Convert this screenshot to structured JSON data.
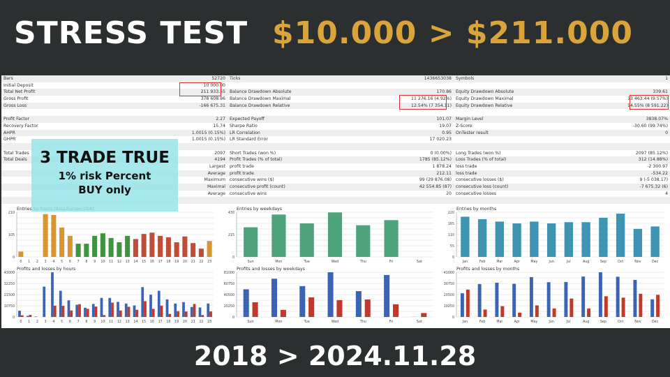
{
  "header": {
    "title": "STRESS TEST",
    "money": "$10.000 > $211.000",
    "dates": "2018 > 2024.11.28"
  },
  "overlay": {
    "line1": "3 TRADE TRUE",
    "line2": "1% risk Percent",
    "line3": "BUY only",
    "color": "#96e4e8"
  },
  "table": [
    [
      [
        "Bars",
        "52720"
      ],
      [
        "Ticks",
        "1436653038"
      ],
      [
        "Symbols",
        "1"
      ]
    ],
    [
      [
        "Initial Deposit",
        "10 000.00"
      ],
      [
        "",
        ""
      ],
      [
        "",
        ""
      ]
    ],
    [
      [
        "Total Net Profit",
        "211 933.55"
      ],
      [
        "Balance Drawdown Absolute",
        "170.86"
      ],
      [
        "Equity Drawdown Absolute",
        "339.61"
      ]
    ],
    [
      [
        "Gross Profit",
        "378 608.86"
      ],
      [
        "Balance Drawdown Maximal",
        "11 276.16 (4.92%)"
      ],
      [
        "Equity Drawdown Maximal",
        "13 463.44 (9.57%)"
      ]
    ],
    [
      [
        "Gross Loss",
        "-166 675.31"
      ],
      [
        "Balance Drawdown Relative",
        "12.54% (7 354.11)"
      ],
      [
        "Equity Drawdown Relative",
        "14.55% (8 591.22)"
      ]
    ],
    [
      [
        "",
        ""
      ],
      [
        "",
        ""
      ],
      [
        "",
        ""
      ]
    ],
    [
      [
        "Profit Factor",
        "2.27"
      ],
      [
        "Expected Payoff",
        "101.07"
      ],
      [
        "Margin Level",
        "3838.07%"
      ]
    ],
    [
      [
        "Recovery Factor",
        "15.74"
      ],
      [
        "Sharpe Ratio",
        "19.07"
      ],
      [
        "Z-Score",
        "-30.60 (99.74%)"
      ]
    ],
    [
      [
        "AHPR",
        "1.0015 (0.15%)"
      ],
      [
        "LR Correlation",
        "0.95"
      ],
      [
        "OnTester result",
        "0"
      ]
    ],
    [
      [
        "GHPR",
        "1.0015 (0.15%)"
      ],
      [
        "LR Standard Error",
        "17 020.23"
      ],
      [
        "",
        ""
      ]
    ],
    [
      [
        "",
        ""
      ],
      [
        "",
        ""
      ],
      [
        "",
        ""
      ]
    ],
    [
      [
        "Total Trades",
        "2097"
      ],
      [
        "Short Trades (won %)",
        "0 (0.00%)"
      ],
      [
        "Long Trades (won %)",
        "2097 (85.12%)"
      ]
    ],
    [
      [
        "Total Deals",
        "4194"
      ],
      [
        "Profit Trades (% of total)",
        "1785 (85.12%)"
      ],
      [
        "Loss Trades (% of total)",
        "312 (14.88%)"
      ]
    ],
    [
      [
        "",
        "Largest"
      ],
      [
        "profit trade",
        "1 878.24"
      ],
      [
        "loss trade",
        "-2 300.97"
      ]
    ],
    [
      [
        "",
        "Average"
      ],
      [
        "profit trade",
        "212.11"
      ],
      [
        "loss trade",
        "-534.22"
      ]
    ],
    [
      [
        "",
        "Maximum"
      ],
      [
        "consecutive wins ($)",
        "99 (29 876.08)"
      ],
      [
        "consecutive losses ($)",
        "9 (-5 038.17)"
      ]
    ],
    [
      [
        "",
        "Maximal"
      ],
      [
        "consecutive profit (count)",
        "42 554.85 (87)"
      ],
      [
        "consecutive loss (count)",
        "-7 675.32 (6)"
      ]
    ],
    [
      [
        "",
        "Average"
      ],
      [
        "consecutive wins",
        "20"
      ],
      [
        "consecutive losses",
        "4"
      ]
    ],
    [
      [
        "",
        ""
      ],
      [
        "",
        ""
      ],
      [
        "",
        ""
      ]
    ]
  ],
  "colors": {
    "highlight_box": "#e03030",
    "gold": "#d9a53b",
    "profit": "#3c64b4",
    "loss": "#c0392b"
  },
  "chart_data": [
    {
      "type": "bar",
      "title": "Entries by hours (Asia,Europe,USA)",
      "categories": [
        "0",
        "1",
        "2",
        "3",
        "4",
        "5",
        "6",
        "7",
        "8",
        "9",
        "10",
        "11",
        "12",
        "13",
        "14",
        "15",
        "16",
        "17",
        "18",
        "19",
        "20",
        "21",
        "22",
        "23"
      ],
      "values": [
        25,
        0,
        0,
        201,
        197,
        138,
        99,
        62,
        62,
        99,
        111,
        89,
        69,
        99,
        84,
        108,
        114,
        99,
        92,
        69,
        96,
        65,
        39,
        75
      ],
      "bar_colors": [
        "#d58a1c",
        "#d58a1c",
        "#d58a1c",
        "#d58a1c",
        "#d58a1c",
        "#d58a1c",
        "#d58a1c",
        "#2a8a2a",
        "#2a8a2a",
        "#2a8a2a",
        "#2a8a2a",
        "#2a8a2a",
        "#2a8a2a",
        "#2a8a2a",
        "#b83a22",
        "#b83a22",
        "#b83a22",
        "#b83a22",
        "#b83a22",
        "#b83a22",
        "#b83a22",
        "#b83a22",
        "#b83a22",
        "#d58a1c"
      ],
      "yticks": [
        0,
        105,
        210
      ],
      "ylim": [
        0,
        210
      ],
      "grid": true
    },
    {
      "type": "bar",
      "title": "Entries by weekdays",
      "categories": [
        "Sun",
        "Mon",
        "Tue",
        "Wed",
        "Thu",
        "Fri",
        "Sat"
      ],
      "values": [
        285,
        408,
        323,
        428,
        305,
        354,
        0
      ],
      "bar_colors": [
        "#3a9a6e"
      ],
      "yticks": [
        0,
        215,
        430
      ],
      "ylim": [
        0,
        430
      ],
      "grid": true
    },
    {
      "type": "bar",
      "title": "Entries by months",
      "categories": [
        "Jan",
        "Feb",
        "Mar",
        "Apr",
        "May",
        "Jun",
        "Jul",
        "Aug",
        "Sep",
        "Oct",
        "Nov",
        "Dec"
      ],
      "values": [
        198,
        186,
        174,
        165,
        174,
        165,
        171,
        171,
        193,
        213,
        138,
        150
      ],
      "bar_colors": [
        "#2a8aa8"
      ],
      "yticks": [
        0,
        55,
        110,
        165,
        220
      ],
      "ylim": [
        0,
        220
      ],
      "grid": true
    },
    {
      "type": "bar",
      "title": "Profits and losses by hours",
      "categories": [
        "0",
        "1",
        "2",
        "3",
        "4",
        "5",
        "6",
        "7",
        "8",
        "9",
        "10",
        "11",
        "12",
        "13",
        "14",
        "15",
        "16",
        "17",
        "18",
        "19",
        "20",
        "21",
        "22",
        "23"
      ],
      "series": [
        {
          "values": [
            6000,
            1100,
            400,
            29200,
            43000,
            25200,
            16000,
            11800,
            8900,
            12500,
            18300,
            18300,
            14500,
            12900,
            11100,
            28700,
            21400,
            25200,
            16900,
            12900,
            14300,
            9600,
            9100,
            12900
          ]
        },
        {
          "values": [
            1600,
            2000,
            0,
            0,
            10900,
            10700,
            6200,
            12300,
            7800,
            10000,
            1800,
            13800,
            6200,
            9800,
            6900,
            15200,
            7800,
            10900,
            2900,
            5600,
            5300,
            12500,
            1800,
            5300
          ]
        }
      ],
      "yticks": [
        0,
        10750,
        21500,
        32250,
        43000
      ],
      "ylim": [
        0,
        43000
      ],
      "grid": true
    },
    {
      "type": "bar",
      "title": "Profits and losses by weekdays",
      "categories": [
        "Sun",
        "Mon",
        "Tue",
        "Wed",
        "Thu",
        "Fri",
        "Sat"
      ],
      "series": [
        {
          "values": [
            50100,
            69300,
            55900,
            81000,
            46800,
            76000,
            200
          ]
        },
        {
          "values": [
            26700,
            12900,
            35500,
            30500,
            31700,
            23000,
            7100
          ]
        }
      ],
      "yticks": [
        0,
        20250,
        40500,
        60750,
        81000
      ],
      "ylim": [
        0,
        81000
      ],
      "grid": true
    },
    {
      "type": "bar",
      "title": "Profits and losses by months",
      "categories": [
        "Jan",
        "Feb",
        "Mar",
        "Apr",
        "May",
        "Jun",
        "Jul",
        "Aug",
        "Sep",
        "Oct",
        "Nov",
        "Dec"
      ],
      "series": [
        {
          "values": [
            21700,
            30200,
            31400,
            30400,
            36500,
            31900,
            32100,
            37100,
            41000,
            36900,
            34000,
            16200
          ]
        },
        {
          "values": [
            25100,
            6800,
            9900,
            4000,
            10600,
            7800,
            16900,
            7800,
            19000,
            17700,
            21300,
            20300
          ]
        }
      ],
      "yticks": [
        0,
        10250,
        20500,
        30750,
        41000
      ],
      "ylim": [
        0,
        41000
      ],
      "grid": true
    }
  ]
}
